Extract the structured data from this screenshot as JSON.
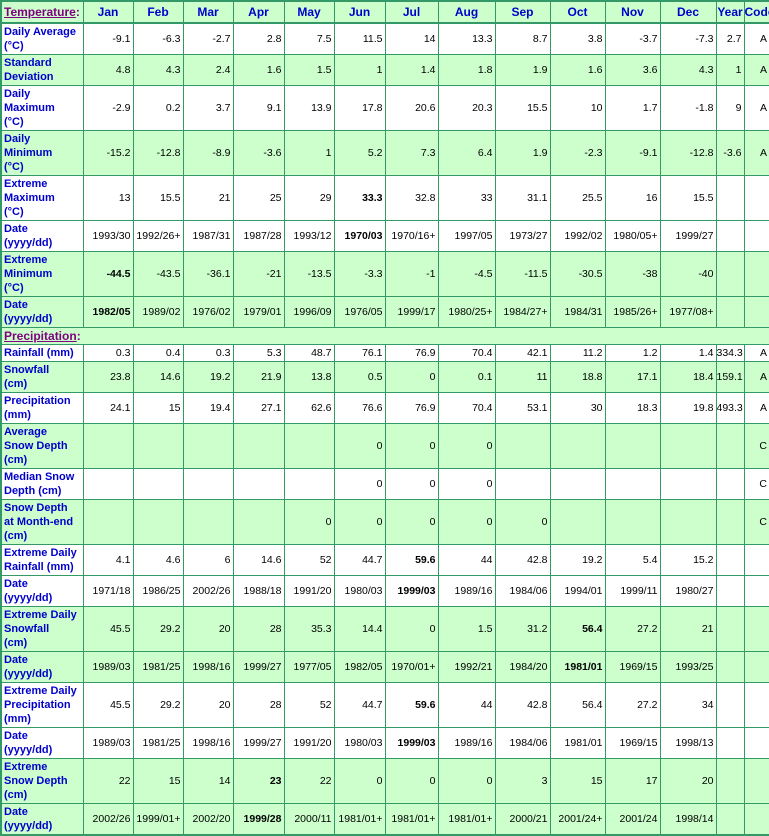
{
  "colors": {
    "border_green": "#339966",
    "shade_green": "#CCFFCC",
    "label_blue": "#0000CC",
    "section_purple": "#800080",
    "data_black": "#000000"
  },
  "header": {
    "temperature_label": "Temperature",
    "colon": ":",
    "months": [
      "Jan",
      "Feb",
      "Mar",
      "Apr",
      "May",
      "Jun",
      "Jul",
      "Aug",
      "Sep",
      "Oct",
      "Nov",
      "Dec"
    ],
    "year_label": "Year",
    "code_label": "Code"
  },
  "precipitation": {
    "label": "Precipitation",
    "colon": ":"
  },
  "temperature_rows": [
    {
      "label": "Daily Average\n(°C)",
      "values": [
        "-9.1",
        "-6.3",
        "-2.7",
        "2.8",
        "7.5",
        "11.5",
        "14",
        "13.3",
        "8.7",
        "3.8",
        "-3.7",
        "-7.3"
      ],
      "year": "2.7",
      "code": "A",
      "shade": false,
      "bold": []
    },
    {
      "label": "Standard\nDeviation",
      "values": [
        "4.8",
        "4.3",
        "2.4",
        "1.6",
        "1.5",
        "1",
        "1.4",
        "1.8",
        "1.9",
        "1.6",
        "3.6",
        "4.3"
      ],
      "year": "1",
      "code": "A",
      "shade": true,
      "bold": []
    },
    {
      "label": "Daily\nMaximum\n(°C)",
      "values": [
        "-2.9",
        "0.2",
        "3.7",
        "9.1",
        "13.9",
        "17.8",
        "20.6",
        "20.3",
        "15.5",
        "10",
        "1.7",
        "-1.8"
      ],
      "year": "9",
      "code": "A",
      "shade": false,
      "bold": []
    },
    {
      "label": "Daily\nMinimum\n(°C)",
      "values": [
        "-15.2",
        "-12.8",
        "-8.9",
        "-3.6",
        "1",
        "5.2",
        "7.3",
        "6.4",
        "1.9",
        "-2.3",
        "-9.1",
        "-12.8"
      ],
      "year": "-3.6",
      "code": "A",
      "shade": true,
      "bold": []
    },
    {
      "label": "Extreme\nMaximum\n(°C)",
      "values": [
        "13",
        "15.5",
        "21",
        "25",
        "29",
        "33.3",
        "32.8",
        "33",
        "31.1",
        "25.5",
        "16",
        "15.5"
      ],
      "year": "",
      "code": "",
      "shade": false,
      "bold": [
        5
      ]
    },
    {
      "label": "Date\n(yyyy/dd)",
      "values": [
        "1993/30",
        "1992/26+",
        "1987/31",
        "1987/28",
        "1993/12",
        "1970/03",
        "1970/16+",
        "1997/05",
        "1973/27",
        "1992/02",
        "1980/05+",
        "1999/27"
      ],
      "year": "",
      "code": "",
      "shade": false,
      "bold": [
        5
      ]
    },
    {
      "label": "Extreme\nMinimum\n(°C)",
      "values": [
        "-44.5",
        "-43.5",
        "-36.1",
        "-21",
        "-13.5",
        "-3.3",
        "-1",
        "-4.5",
        "-11.5",
        "-30.5",
        "-38",
        "-40"
      ],
      "year": "",
      "code": "",
      "shade": true,
      "bold": [
        0
      ]
    },
    {
      "label": "Date\n(yyyy/dd)",
      "values": [
        "1982/05",
        "1989/02",
        "1976/02",
        "1979/01",
        "1996/09",
        "1976/05",
        "1999/17",
        "1980/25+",
        "1984/27+",
        "1984/31",
        "1985/26+",
        "1977/08+"
      ],
      "year": "",
      "code": "",
      "shade": true,
      "bold": [
        0
      ]
    }
  ],
  "precipitation_rows": [
    {
      "label": "Rainfall (mm)",
      "values": [
        "0.3",
        "0.4",
        "0.3",
        "5.3",
        "48.7",
        "76.1",
        "76.9",
        "70.4",
        "42.1",
        "11.2",
        "1.2",
        "1.4"
      ],
      "year": "334.3",
      "code": "A",
      "shade": false,
      "bold": []
    },
    {
      "label": "Snowfall\n(cm)",
      "values": [
        "23.8",
        "14.6",
        "19.2",
        "21.9",
        "13.8",
        "0.5",
        "0",
        "0.1",
        "11",
        "18.8",
        "17.1",
        "18.4"
      ],
      "year": "159.1",
      "code": "A",
      "shade": true,
      "bold": []
    },
    {
      "label": "Precipitation\n(mm)",
      "values": [
        "24.1",
        "15",
        "19.4",
        "27.1",
        "62.6",
        "76.6",
        "76.9",
        "70.4",
        "53.1",
        "30",
        "18.3",
        "19.8"
      ],
      "year": "493.3",
      "code": "A",
      "shade": false,
      "bold": []
    },
    {
      "label": "Average\nSnow Depth\n(cm)",
      "values": [
        "",
        "",
        "",
        "",
        "",
        "0",
        "0",
        "0",
        "",
        "",
        "",
        ""
      ],
      "year": "",
      "code": "C",
      "shade": true,
      "bold": []
    },
    {
      "label": "Median Snow\nDepth (cm)",
      "values": [
        "",
        "",
        "",
        "",
        "",
        "0",
        "0",
        "0",
        "",
        "",
        "",
        ""
      ],
      "year": "",
      "code": "C",
      "shade": false,
      "bold": []
    },
    {
      "label": "Snow Depth\nat Month-end\n(cm)",
      "values": [
        "",
        "",
        "",
        "",
        "0",
        "0",
        "0",
        "0",
        "0",
        "",
        "",
        ""
      ],
      "year": "",
      "code": "C",
      "shade": true,
      "bold": []
    },
    {
      "label": "Extreme Daily\nRainfall (mm)",
      "values": [
        "4.1",
        "4.6",
        "6",
        "14.6",
        "52",
        "44.7",
        "59.6",
        "44",
        "42.8",
        "19.2",
        "5.4",
        "15.2"
      ],
      "year": "",
      "code": "",
      "shade": false,
      "bold": [
        6
      ]
    },
    {
      "label": "Date\n(yyyy/dd)",
      "values": [
        "1971/18",
        "1986/25",
        "2002/26",
        "1988/18",
        "1991/20",
        "1980/03",
        "1999/03",
        "1989/16",
        "1984/06",
        "1994/01",
        "1999/11",
        "1980/27"
      ],
      "year": "",
      "code": "",
      "shade": false,
      "bold": [
        6
      ]
    },
    {
      "label": "Extreme Daily\nSnowfall\n(cm)",
      "values": [
        "45.5",
        "29.2",
        "20",
        "28",
        "35.3",
        "14.4",
        "0",
        "1.5",
        "31.2",
        "56.4",
        "27.2",
        "21"
      ],
      "year": "",
      "code": "",
      "shade": true,
      "bold": [
        9
      ]
    },
    {
      "label": "Date\n(yyyy/dd)",
      "values": [
        "1989/03",
        "1981/25",
        "1998/16",
        "1999/27",
        "1977/05",
        "1982/05",
        "1970/01+",
        "1992/21",
        "1984/20",
        "1981/01",
        "1969/15",
        "1993/25"
      ],
      "year": "",
      "code": "",
      "shade": true,
      "bold": [
        9
      ]
    },
    {
      "label": "Extreme Daily\nPrecipitation\n(mm)",
      "values": [
        "45.5",
        "29.2",
        "20",
        "28",
        "52",
        "44.7",
        "59.6",
        "44",
        "42.8",
        "56.4",
        "27.2",
        "34"
      ],
      "year": "",
      "code": "",
      "shade": false,
      "bold": [
        6
      ]
    },
    {
      "label": "Date\n(yyyy/dd)",
      "values": [
        "1989/03",
        "1981/25",
        "1998/16",
        "1999/27",
        "1991/20",
        "1980/03",
        "1999/03",
        "1989/16",
        "1984/06",
        "1981/01",
        "1969/15",
        "1998/13"
      ],
      "year": "",
      "code": "",
      "shade": false,
      "bold": [
        6
      ]
    },
    {
      "label": "Extreme\nSnow Depth\n(cm)",
      "values": [
        "22",
        "15",
        "14",
        "23",
        "22",
        "0",
        "0",
        "0",
        "3",
        "15",
        "17",
        "20"
      ],
      "year": "",
      "code": "",
      "shade": true,
      "bold": [
        3
      ]
    },
    {
      "label": "Date\n(yyyy/dd)",
      "values": [
        "2002/26",
        "1999/01+",
        "2002/20",
        "1999/28",
        "2000/11",
        "1981/01+",
        "1981/01+",
        "1981/01+",
        "2000/21",
        "2001/24+",
        "2001/24",
        "1998/14"
      ],
      "year": "",
      "code": "",
      "shade": true,
      "bold": [
        3
      ]
    }
  ]
}
